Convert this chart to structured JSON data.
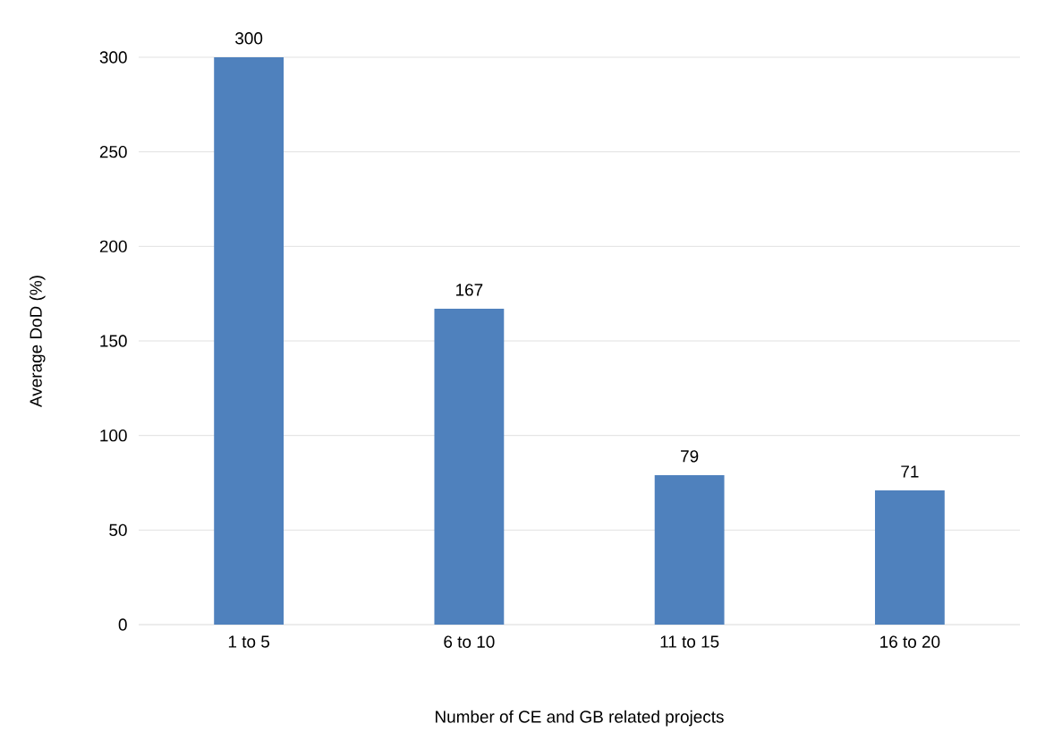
{
  "chart_data": {
    "type": "bar",
    "xlabel": "Number of CE and GB related  projects",
    "ylabel": "Average DoD (%)",
    "categories": [
      "1 to 5",
      "6 to 10",
      "11 to 15",
      "16 to 20"
    ],
    "values": [
      300,
      167,
      79,
      71
    ],
    "color": "#4f81bd",
    "ylim": [
      0,
      300
    ],
    "yticks": [
      0,
      50,
      100,
      150,
      200,
      250,
      300
    ],
    "grid": "y",
    "data_labels": true
  }
}
